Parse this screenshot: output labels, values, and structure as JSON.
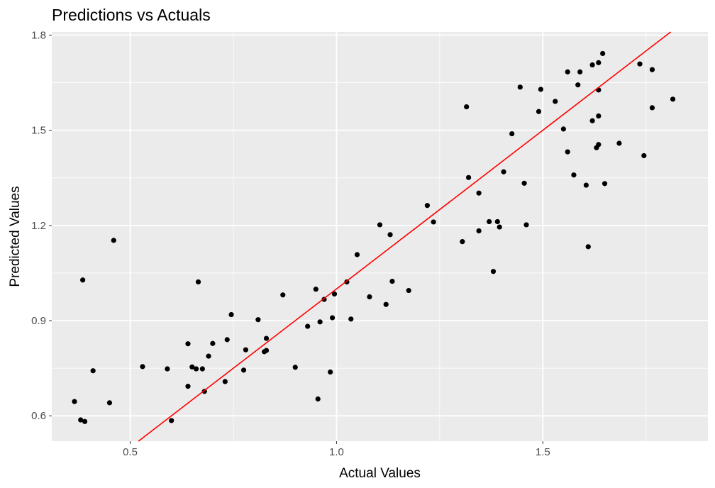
{
  "chart_data": {
    "type": "scatter",
    "title": "Predictions vs Actuals",
    "xlabel": "Actual Values",
    "ylabel": "Predicted Values",
    "xlim": [
      0.31,
      1.9
    ],
    "ylim": [
      0.52,
      1.81
    ],
    "x_ticks": [
      0.5,
      1.0,
      1.5
    ],
    "x_tick_labels": [
      "0.5",
      "1.0",
      "1.5"
    ],
    "y_ticks": [
      0.6,
      0.9,
      1.2,
      1.5,
      1.8
    ],
    "y_tick_labels": [
      "0.6",
      "0.9",
      "1.2",
      "1.5",
      "1.8"
    ],
    "grid": true,
    "background": "#ebebeb",
    "gridline_color": "#ffffff",
    "point_color": "#000000",
    "reference_line": {
      "type": "y=x",
      "color": "#ff0000"
    },
    "points": [
      [
        0.365,
        0.645
      ],
      [
        0.38,
        0.587
      ],
      [
        0.39,
        0.582
      ],
      [
        0.385,
        1.028
      ],
      [
        0.41,
        0.742
      ],
      [
        0.45,
        0.641
      ],
      [
        0.46,
        1.153
      ],
      [
        0.53,
        0.755
      ],
      [
        0.59,
        0.748
      ],
      [
        0.6,
        0.585
      ],
      [
        0.64,
        0.693
      ],
      [
        0.64,
        0.827
      ],
      [
        0.65,
        0.754
      ],
      [
        0.66,
        0.748
      ],
      [
        0.665,
        1.022
      ],
      [
        0.675,
        0.748
      ],
      [
        0.68,
        0.677
      ],
      [
        0.69,
        0.788
      ],
      [
        0.7,
        0.828
      ],
      [
        0.73,
        0.708
      ],
      [
        0.735,
        0.84
      ],
      [
        0.745,
        0.919
      ],
      [
        0.775,
        0.744
      ],
      [
        0.78,
        0.808
      ],
      [
        0.81,
        0.903
      ],
      [
        0.825,
        0.802
      ],
      [
        0.83,
        0.806
      ],
      [
        0.83,
        0.844
      ],
      [
        0.87,
        0.981
      ],
      [
        0.9,
        0.753
      ],
      [
        0.93,
        0.882
      ],
      [
        0.95,
        0.999
      ],
      [
        0.955,
        0.653
      ],
      [
        0.96,
        0.896
      ],
      [
        0.97,
        0.967
      ],
      [
        0.985,
        0.738
      ],
      [
        0.99,
        0.909
      ],
      [
        0.995,
        0.984
      ],
      [
        1.025,
        1.022
      ],
      [
        1.035,
        0.905
      ],
      [
        1.05,
        1.108
      ],
      [
        1.08,
        0.975
      ],
      [
        1.105,
        1.202
      ],
      [
        1.12,
        0.951
      ],
      [
        1.13,
        1.171
      ],
      [
        1.135,
        1.024
      ],
      [
        1.175,
        0.995
      ],
      [
        1.22,
        1.263
      ],
      [
        1.235,
        1.211
      ],
      [
        1.305,
        1.149
      ],
      [
        1.315,
        1.574
      ],
      [
        1.32,
        1.351
      ],
      [
        1.345,
        1.302
      ],
      [
        1.345,
        1.183
      ],
      [
        1.37,
        1.212
      ],
      [
        1.38,
        1.055
      ],
      [
        1.39,
        1.212
      ],
      [
        1.395,
        1.195
      ],
      [
        1.405,
        1.369
      ],
      [
        1.425,
        1.489
      ],
      [
        1.445,
        1.636
      ],
      [
        1.455,
        1.333
      ],
      [
        1.46,
        1.202
      ],
      [
        1.49,
        1.559
      ],
      [
        1.495,
        1.629
      ],
      [
        1.53,
        1.591
      ],
      [
        1.55,
        1.504
      ],
      [
        1.56,
        1.684
      ],
      [
        1.56,
        1.432
      ],
      [
        1.575,
        1.359
      ],
      [
        1.585,
        1.643
      ],
      [
        1.59,
        1.684
      ],
      [
        1.605,
        1.327
      ],
      [
        1.61,
        1.133
      ],
      [
        1.62,
        1.706
      ],
      [
        1.62,
        1.53
      ],
      [
        1.63,
        1.445
      ],
      [
        1.635,
        1.713
      ],
      [
        1.635,
        1.545
      ],
      [
        1.635,
        1.627
      ],
      [
        1.635,
        1.455
      ],
      [
        1.645,
        1.742
      ],
      [
        1.65,
        1.332
      ],
      [
        1.685,
        1.459
      ],
      [
        1.735,
        1.709
      ],
      [
        1.745,
        1.42
      ],
      [
        1.765,
        1.571
      ],
      [
        1.765,
        1.691
      ],
      [
        1.815,
        1.598
      ]
    ]
  }
}
